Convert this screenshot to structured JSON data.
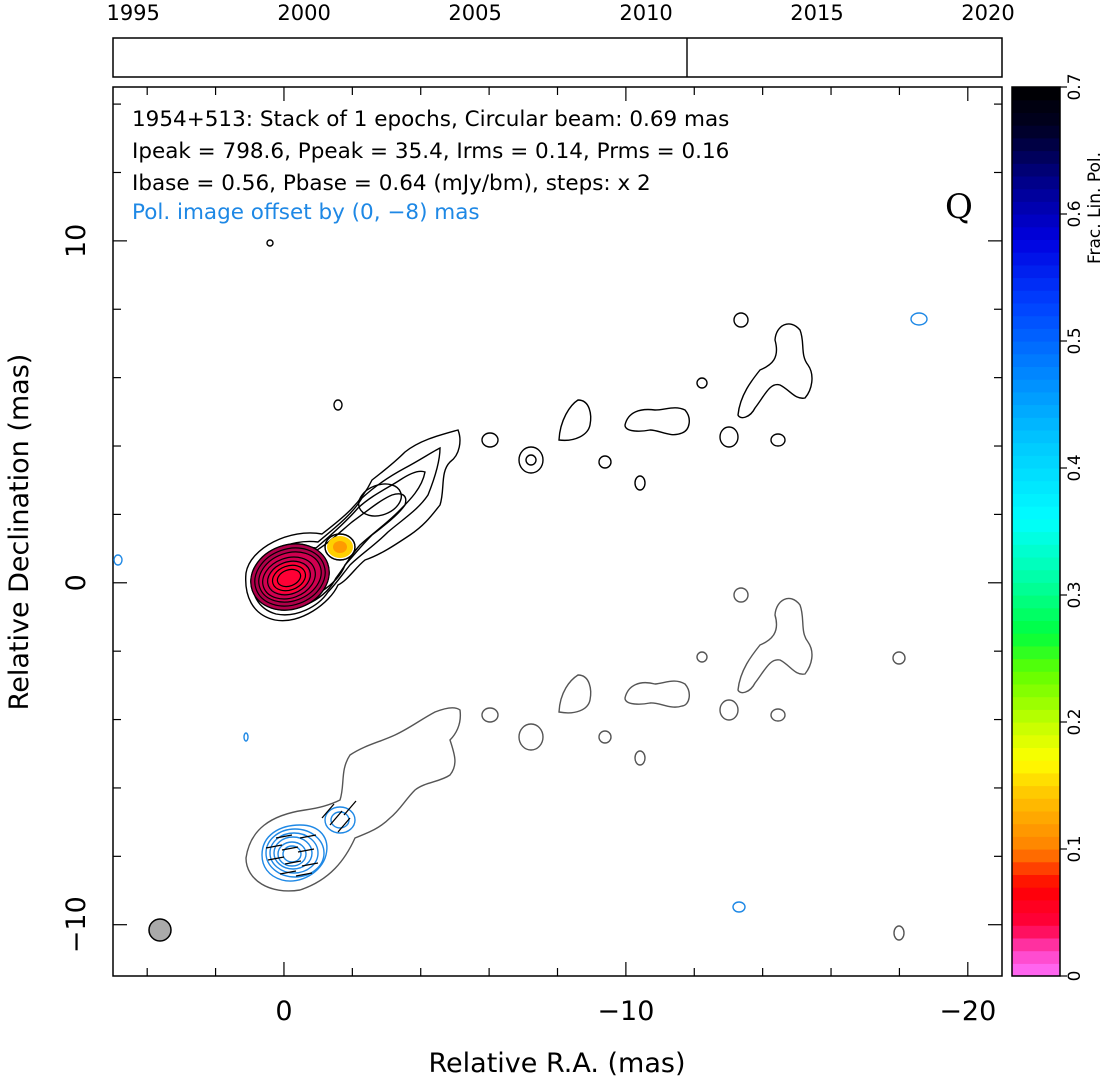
{
  "chart_data": {
    "type": "contour",
    "source": "1954+513",
    "stokes_label": "Q",
    "header_lines": [
      "1954+513: Stack of 1 epochs, Circular beam: 0.69 mas",
      "Ipeak = 798.6, Ppeak = 35.4, Irms = 0.14, Prms = 0.16",
      "Ibase = 0.56, Pbase = 0.64 (mJy/bm), steps: x 2"
    ],
    "offset_note": "Pol. image offset by (0, −8) mas",
    "xlabel": "Relative R.A. (mas)",
    "ylabel": "Relative Declination (mas)",
    "xlim": [
      5,
      -21
    ],
    "ylim": [
      -11.5,
      14.5
    ],
    "x_ticks": [
      0,
      -10,
      -20
    ],
    "x_tick_labels": [
      "0",
      "−10",
      "−20"
    ],
    "y_ticks": [
      10,
      0,
      -10
    ],
    "y_tick_labels": [
      "10",
      "0",
      "−10"
    ],
    "epoch_axis": {
      "ticks": [
        1995,
        2000,
        2005,
        2010,
        2015,
        2020
      ],
      "tick_labels": [
        "1995",
        "2000",
        "2005",
        "2010",
        "2015",
        "2020"
      ],
      "range": [
        1994,
        2020
      ],
      "marked_epoch": 2010.9
    },
    "colorbar": {
      "label": "Frac. Lin. Pol.",
      "range": [
        0,
        0.7
      ],
      "ticks": [
        0,
        0.1,
        0.2,
        0.3,
        0.4,
        0.5,
        0.6,
        0.7
      ],
      "tick_labels": [
        "0",
        "0.1",
        "0.2",
        "0.3",
        "0.4",
        "0.5",
        "0.6",
        "0.7"
      ]
    },
    "beam_diameter_mas": 0.69,
    "beam_position": [
      3.7,
      -10.1
    ],
    "core_fractional_pol": [
      {
        "x": 0.1,
        "y": 0.1,
        "frac": 0.03
      },
      {
        "x": -1.6,
        "y": 1.0,
        "frac": 0.15
      }
    ]
  },
  "colors": {
    "total_intensity_contours": "#000000",
    "offset_total_intensity_contours": "#555555",
    "polarization_contours": "#1e88e5",
    "beam_fill": "#aaaaaa"
  }
}
